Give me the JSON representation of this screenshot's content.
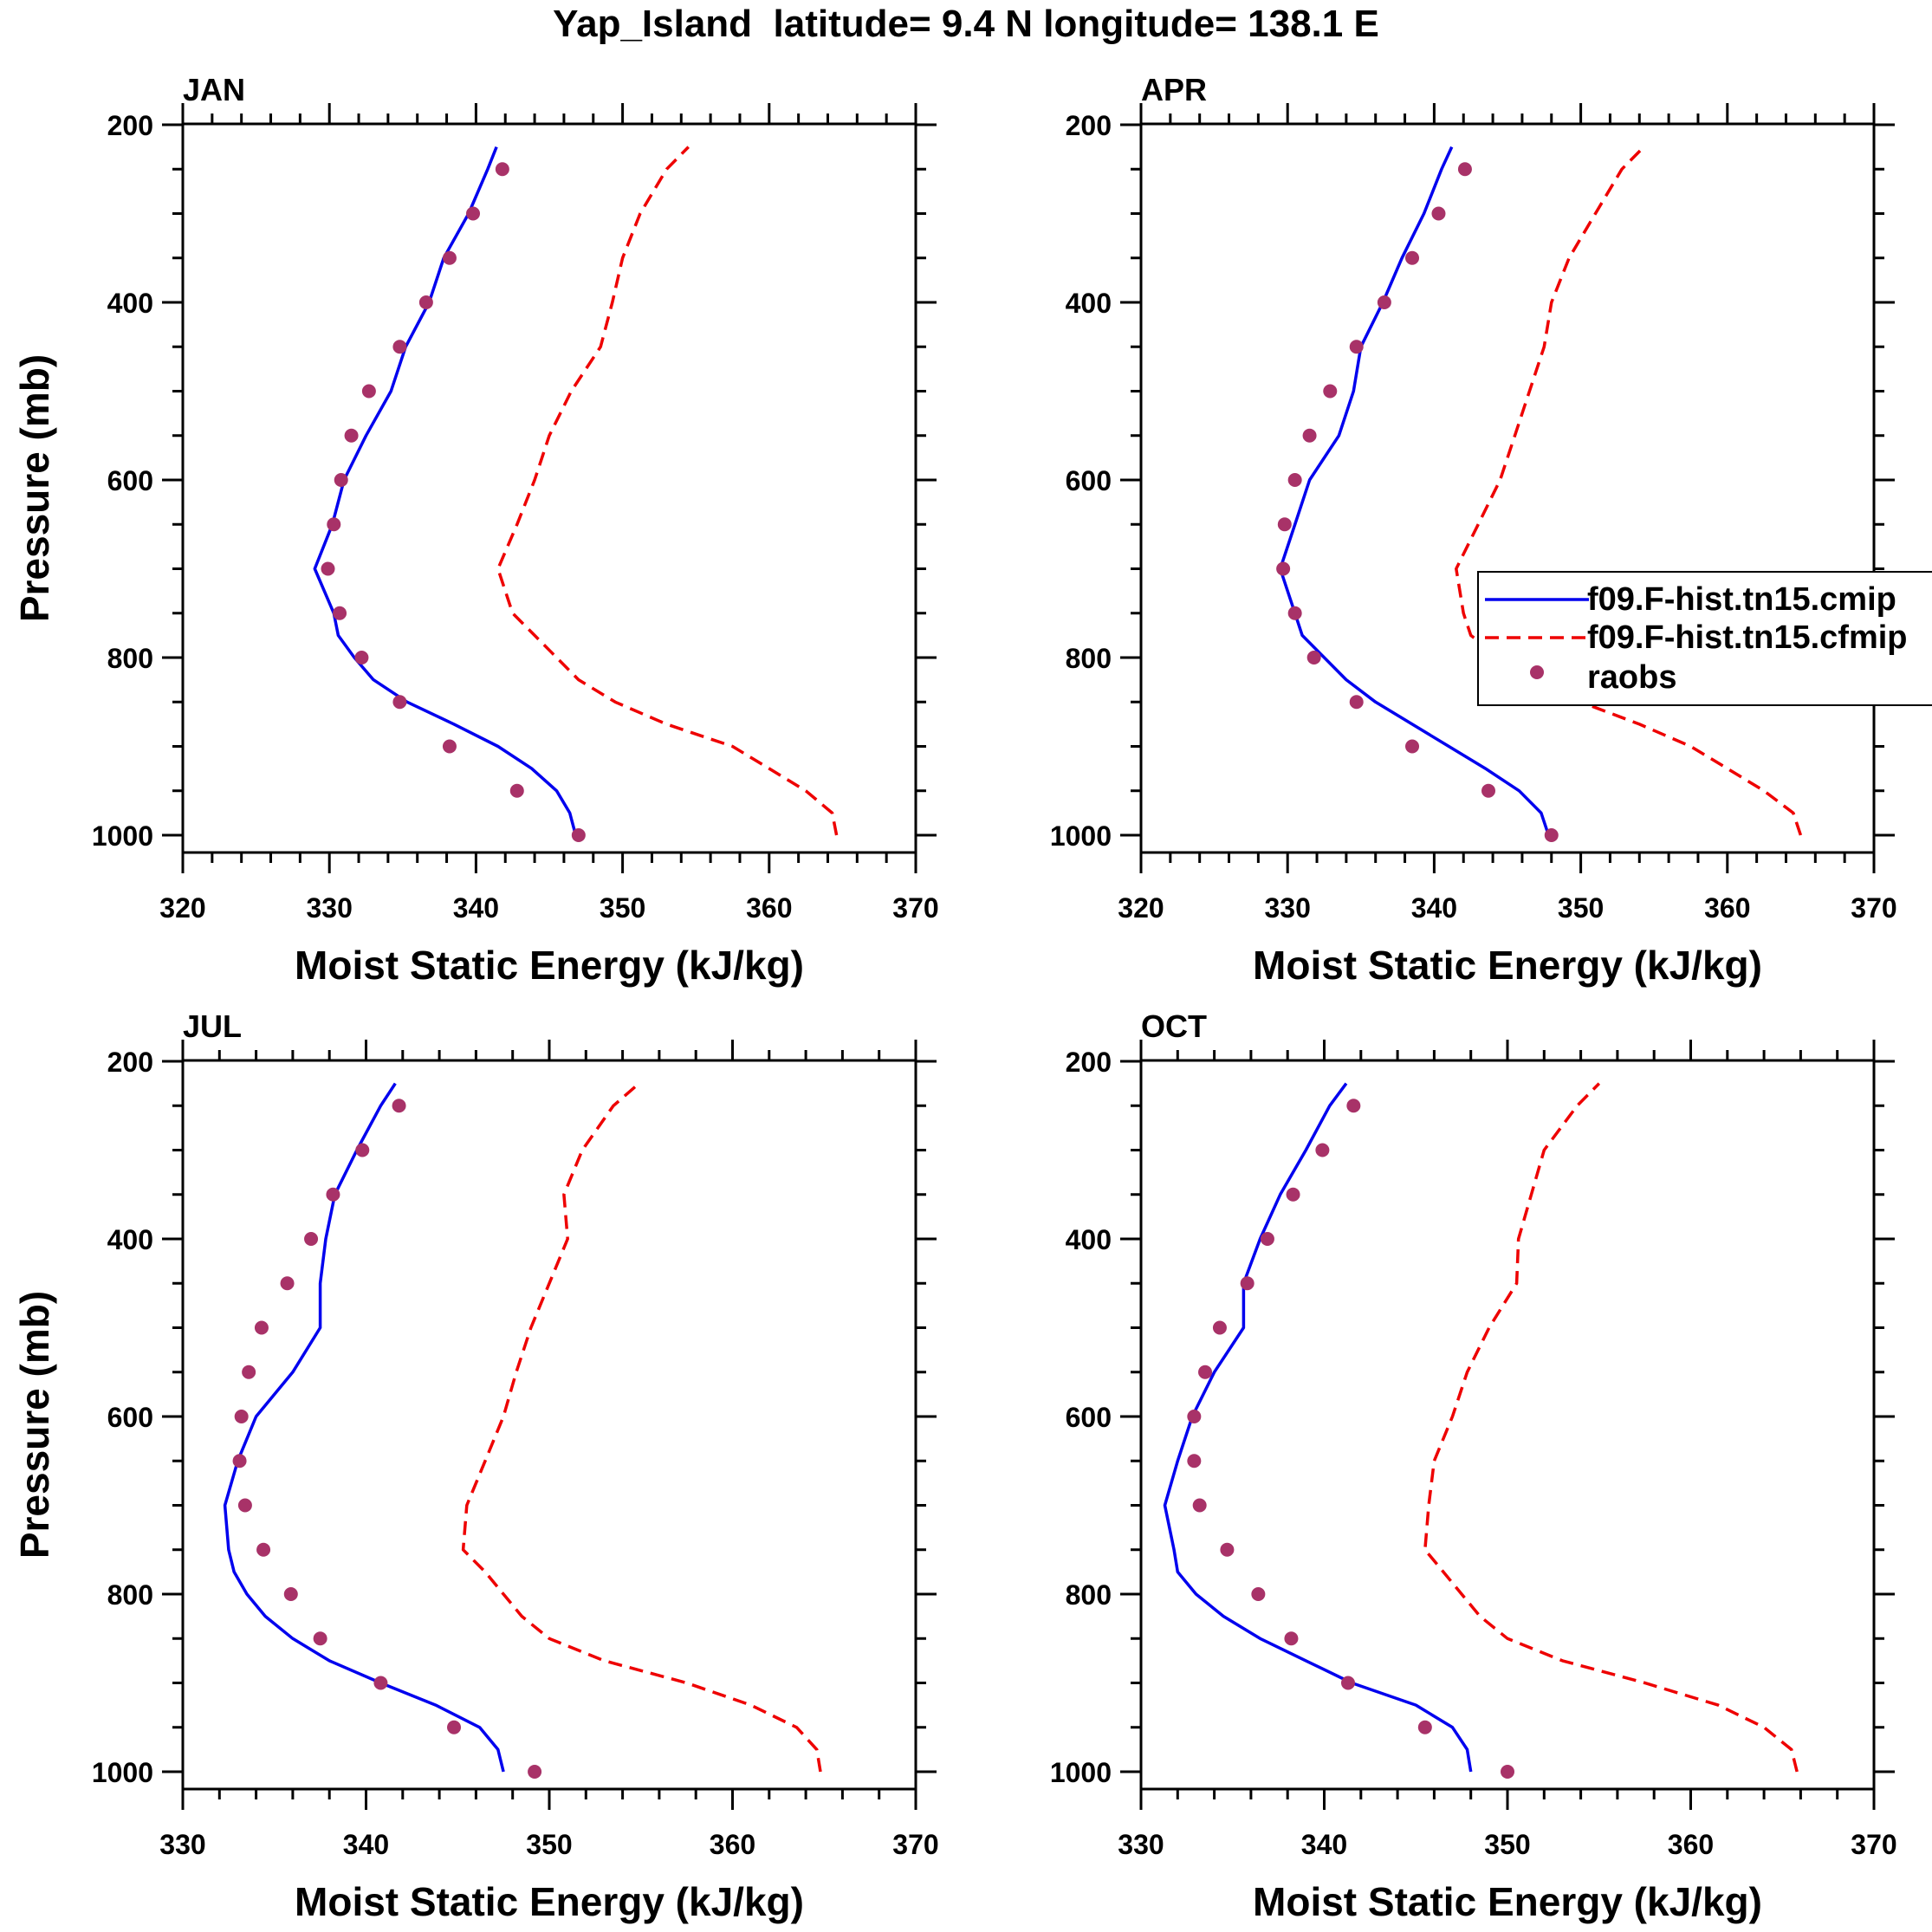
{
  "figure": {
    "title": "Yap_Island  latitude= 9.4 N longitude= 138.1 E"
  },
  "colors": {
    "model_a": "#0000ee",
    "model_b": "#ee0000",
    "raobs": "#a83268",
    "axes": "#000000"
  },
  "legend": {
    "entries": [
      {
        "label": "f09.F-hist.tn15.cmip",
        "style": "solid"
      },
      {
        "label": "f09.F-hist.tn15.cfmip",
        "style": "dashed"
      },
      {
        "label": "raobs",
        "style": "marker"
      }
    ]
  },
  "chart_data": [
    {
      "type": "line",
      "panel": "JAN",
      "title": "JAN",
      "xlabel": "Moist Static Energy (kJ/kg)",
      "ylabel": "Pressure (mb)",
      "xlim": [
        320,
        370
      ],
      "xticks": [
        320,
        330,
        340,
        350,
        360,
        370
      ],
      "ylim": [
        1000,
        200
      ],
      "yticks": [
        200,
        400,
        600,
        800,
        1000
      ],
      "series": [
        {
          "name": "f09.F-hist.tn15.cmip",
          "pressure": [
            1000,
            975,
            950,
            925,
            900,
            875,
            850,
            825,
            800,
            775,
            750,
            700,
            650,
            600,
            550,
            500,
            450,
            400,
            350,
            300,
            250,
            225
          ],
          "values": [
            346.8,
            346.4,
            345.5,
            343.8,
            341.5,
            338.5,
            335.3,
            333.0,
            331.7,
            330.6,
            330.3,
            329.0,
            330.2,
            331.0,
            332.5,
            334.2,
            335.2,
            336.8,
            337.8,
            339.5,
            340.8,
            341.4
          ]
        },
        {
          "name": "f09.F-hist.tn15.cfmip",
          "pressure": [
            1000,
            975,
            950,
            925,
            900,
            875,
            850,
            825,
            800,
            775,
            750,
            700,
            650,
            600,
            550,
            500,
            450,
            400,
            350,
            300,
            250,
            225
          ],
          "values": [
            364.6,
            364.3,
            362.5,
            360.0,
            357.5,
            353.0,
            349.5,
            347.0,
            345.5,
            344.0,
            342.5,
            341.5,
            342.8,
            344.0,
            345.0,
            346.5,
            348.5,
            349.3,
            350.0,
            351.2,
            353.0,
            354.5
          ]
        },
        {
          "name": "raobs",
          "pressure": [
            1000,
            950,
            900,
            850,
            800,
            750,
            700,
            650,
            600,
            550,
            500,
            450,
            400,
            350,
            300,
            250
          ],
          "values": [
            347.0,
            342.8,
            338.2,
            334.8,
            332.2,
            330.7,
            329.9,
            330.3,
            330.8,
            331.5,
            332.7,
            334.8,
            336.6,
            338.2,
            339.8,
            341.8
          ]
        }
      ]
    },
    {
      "type": "line",
      "panel": "APR",
      "title": "APR",
      "xlabel": "Moist Static Energy (kJ/kg)",
      "ylabel": "",
      "xlim": [
        320,
        370
      ],
      "xticks": [
        320,
        330,
        340,
        350,
        360,
        370
      ],
      "ylim": [
        1000,
        200
      ],
      "yticks": [
        200,
        400,
        600,
        800,
        1000
      ],
      "series": [
        {
          "name": "f09.F-hist.tn15.cmip",
          "pressure": [
            1000,
            975,
            950,
            925,
            900,
            875,
            850,
            825,
            800,
            775,
            750,
            700,
            650,
            600,
            550,
            500,
            450,
            400,
            350,
            300,
            250,
            225
          ],
          "values": [
            347.8,
            347.3,
            345.8,
            343.5,
            341.0,
            338.5,
            336.0,
            334.0,
            332.5,
            331.0,
            330.5,
            329.5,
            330.5,
            331.5,
            333.5,
            334.5,
            335.0,
            336.5,
            337.8,
            339.3,
            340.5,
            341.2
          ]
        },
        {
          "name": "f09.F-hist.tn15.cfmip",
          "pressure": [
            1000,
            975,
            950,
            925,
            900,
            875,
            850,
            825,
            800,
            775,
            750,
            700,
            650,
            600,
            550,
            500,
            450,
            400,
            350,
            300,
            250,
            225
          ],
          "values": [
            365.0,
            364.5,
            362.5,
            360.0,
            357.5,
            354.0,
            350.0,
            346.5,
            344.5,
            342.5,
            342.0,
            341.5,
            343.0,
            344.5,
            345.5,
            346.5,
            347.5,
            348.0,
            349.2,
            351.0,
            352.8,
            354.3
          ]
        },
        {
          "name": "raobs",
          "pressure": [
            1000,
            950,
            900,
            850,
            800,
            750,
            700,
            650,
            600,
            550,
            500,
            450,
            400,
            350,
            300,
            250
          ],
          "values": [
            348.0,
            343.7,
            338.5,
            334.7,
            331.8,
            330.5,
            329.7,
            329.8,
            330.5,
            331.5,
            332.9,
            334.7,
            336.6,
            338.5,
            340.3,
            342.1
          ]
        }
      ]
    },
    {
      "type": "line",
      "panel": "JUL",
      "title": "JUL",
      "xlabel": "Moist Static Energy (kJ/kg)",
      "ylabel": "Pressure (mb)",
      "xlim": [
        330,
        370
      ],
      "xticks": [
        330,
        340,
        350,
        360,
        370
      ],
      "ylim": [
        1000,
        200
      ],
      "yticks": [
        200,
        400,
        600,
        800,
        1000
      ],
      "series": [
        {
          "name": "f09.F-hist.tn15.cmip",
          "pressure": [
            1000,
            975,
            950,
            925,
            900,
            875,
            850,
            825,
            800,
            775,
            750,
            700,
            650,
            600,
            550,
            500,
            450,
            400,
            350,
            300,
            250,
            225
          ],
          "values": [
            347.5,
            347.2,
            346.2,
            343.8,
            340.8,
            338.0,
            336.0,
            334.5,
            333.5,
            332.8,
            332.5,
            332.3,
            333.0,
            334.0,
            336.0,
            337.5,
            337.5,
            337.8,
            338.3,
            339.5,
            340.8,
            341.6
          ]
        },
        {
          "name": "f09.F-hist.tn15.cfmip",
          "pressure": [
            1000,
            975,
            950,
            925,
            900,
            875,
            850,
            825,
            800,
            775,
            750,
            700,
            650,
            600,
            550,
            500,
            450,
            400,
            350,
            300,
            250,
            225
          ],
          "values": [
            364.8,
            364.6,
            363.5,
            361.0,
            357.5,
            353.0,
            350.0,
            348.5,
            347.5,
            346.5,
            345.3,
            345.5,
            346.5,
            347.5,
            348.2,
            349.0,
            350.0,
            351.0,
            350.8,
            351.8,
            353.5,
            354.9
          ]
        },
        {
          "name": "raobs",
          "pressure": [
            1000,
            950,
            900,
            850,
            800,
            750,
            700,
            650,
            600,
            550,
            500,
            450,
            400,
            350,
            300,
            250
          ],
          "values": [
            349.2,
            344.8,
            340.8,
            337.5,
            335.9,
            334.4,
            333.4,
            333.1,
            333.2,
            333.6,
            334.3,
            335.7,
            337.0,
            338.2,
            339.8,
            341.8
          ]
        }
      ]
    },
    {
      "type": "line",
      "panel": "OCT",
      "title": "OCT",
      "xlabel": "Moist Static Energy (kJ/kg)",
      "ylabel": "",
      "xlim": [
        330,
        370
      ],
      "xticks": [
        330,
        340,
        350,
        360,
        370
      ],
      "ylim": [
        1000,
        200
      ],
      "yticks": [
        200,
        400,
        600,
        800,
        1000
      ],
      "series": [
        {
          "name": "f09.F-hist.tn15.cmip",
          "pressure": [
            1000,
            975,
            950,
            925,
            900,
            875,
            850,
            825,
            800,
            775,
            750,
            700,
            650,
            600,
            550,
            500,
            450,
            400,
            350,
            300,
            250,
            225
          ],
          "values": [
            348.0,
            347.8,
            347.0,
            345.0,
            341.5,
            339.0,
            336.5,
            334.5,
            333.0,
            332.0,
            331.8,
            331.3,
            332.0,
            332.8,
            334.0,
            335.6,
            335.6,
            336.5,
            337.6,
            339.0,
            340.3,
            341.2
          ]
        },
        {
          "name": "f09.F-hist.tn15.cfmip",
          "pressure": [
            1000,
            975,
            950,
            925,
            900,
            875,
            850,
            825,
            800,
            775,
            750,
            700,
            650,
            600,
            550,
            500,
            450,
            400,
            350,
            300,
            250,
            225
          ],
          "values": [
            365.8,
            365.5,
            364.0,
            361.5,
            357.5,
            353.0,
            350.0,
            348.5,
            347.5,
            346.5,
            345.5,
            345.7,
            346.0,
            347.0,
            347.8,
            349.0,
            350.5,
            350.6,
            351.3,
            352.0,
            353.8,
            355.0
          ]
        },
        {
          "name": "raobs",
          "pressure": [
            1000,
            950,
            900,
            850,
            800,
            750,
            700,
            650,
            600,
            550,
            500,
            450,
            400,
            350,
            300,
            250
          ],
          "values": [
            350.0,
            345.5,
            341.3,
            338.2,
            336.4,
            334.7,
            333.2,
            332.9,
            332.9,
            333.5,
            334.3,
            335.8,
            336.9,
            338.3,
            339.9,
            341.6
          ]
        }
      ]
    }
  ]
}
